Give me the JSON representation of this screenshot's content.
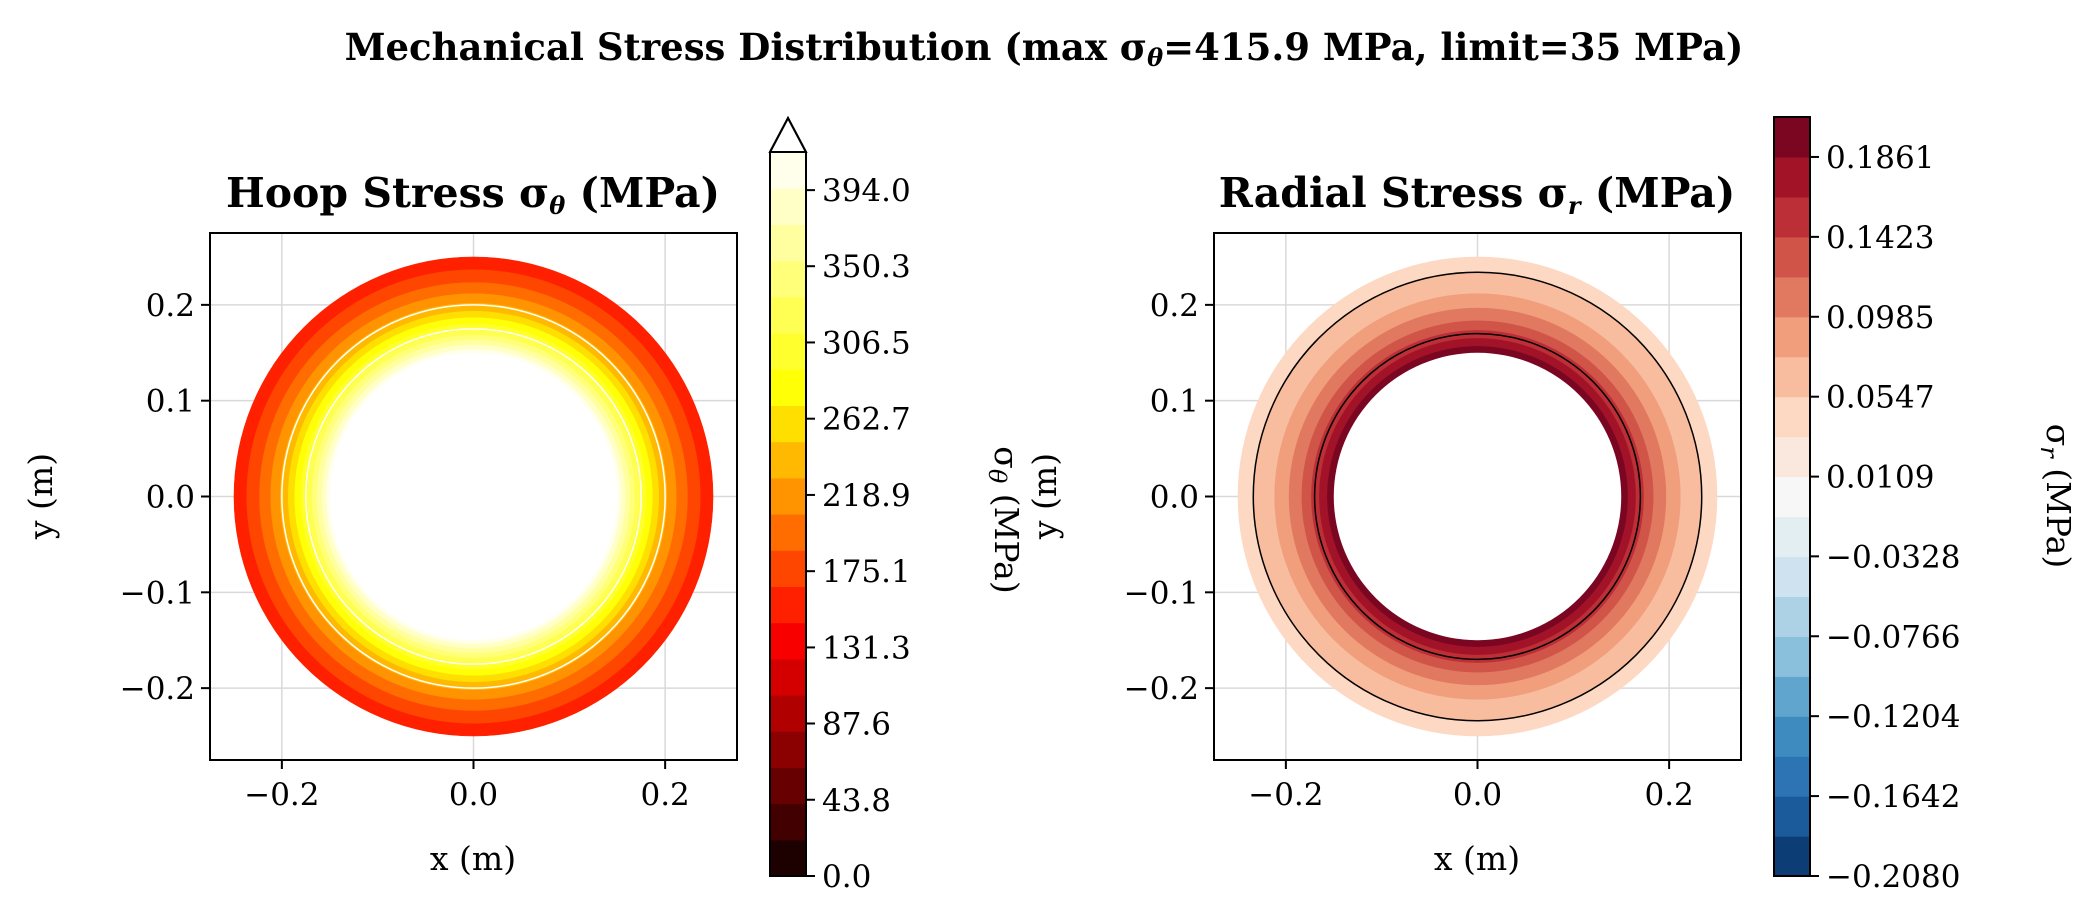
{
  "figure": {
    "suptitle_main": "Mechanical Stress Distribution (max σ",
    "suptitle_sub": "θ",
    "suptitle_rest": "=415.9 MPa, limit=35 MPa)"
  },
  "hoop_panel": {
    "title_main": "Hoop Stress σ",
    "title_sub": "θ",
    "title_rest": " (MPa)",
    "xlabel": "x (m)",
    "ylabel": "y (m)",
    "cbar_label_main": "σ",
    "cbar_label_sub": "θ",
    "cbar_label_rest": " (MPa)"
  },
  "radial_panel": {
    "title_main": "Radial Stress σ",
    "title_sub": "r",
    "title_rest": " (MPa)",
    "xlabel": "x (m)",
    "ylabel": "y (m)",
    "cbar_label_main": "σ",
    "cbar_label_sub": "r",
    "cbar_label_rest": " (MPa)"
  },
  "chart_data": [
    {
      "type": "heatmap",
      "plot_kind": "filled contour on annulus",
      "title": "Hoop Stress σθ (MPa)",
      "xlabel": "x (m)",
      "ylabel": "y (m)",
      "xlim": [
        -0.275,
        0.275
      ],
      "ylim": [
        -0.275,
        0.275
      ],
      "x_ticks": [
        -0.2,
        0.0,
        0.2
      ],
      "y_ticks": [
        -0.2,
        -0.1,
        0.0,
        0.1,
        0.2
      ],
      "x_tick_labels": [
        "−0.2",
        "0.0",
        "0.2"
      ],
      "y_tick_labels": [
        "−0.2",
        "−0.1",
        "0.0",
        "0.1",
        "0.2"
      ],
      "inner_radius": 0.15,
      "outer_radius": 0.25,
      "colormap": "hot",
      "colorbar_min": 0.0,
      "colorbar_max": 415.9,
      "colorbar_extend": "max",
      "colorbar_ticks": [
        0.0,
        43.8,
        87.6,
        131.3,
        175.1,
        218.9,
        262.7,
        306.5,
        350.3,
        394.0
      ],
      "colorbar_tick_labels": [
        "0.0",
        "43.8",
        "87.6",
        "131.3",
        "175.1",
        "218.9",
        "262.7",
        "306.5",
        "350.3",
        "394.0"
      ],
      "levels": 20,
      "field_inner_value": 415.9,
      "field_outer_value": 150,
      "contour_lines_color": "#ffffff",
      "contour_line_radii": [
        0.175,
        0.2
      ],
      "grid": true
    },
    {
      "type": "heatmap",
      "plot_kind": "filled contour on annulus",
      "title": "Radial Stress σr (MPa)",
      "xlabel": "x (m)",
      "ylabel": "y (m)",
      "xlim": [
        -0.275,
        0.275
      ],
      "ylim": [
        -0.275,
        0.275
      ],
      "x_ticks": [
        -0.2,
        0.0,
        0.2
      ],
      "y_ticks": [
        -0.2,
        -0.1,
        0.0,
        0.1,
        0.2
      ],
      "x_tick_labels": [
        "−0.2",
        "0.0",
        "0.2"
      ],
      "y_tick_labels": [
        "−0.2",
        "−0.1",
        "0.0",
        "0.1",
        "0.2"
      ],
      "inner_radius": 0.15,
      "outer_radius": 0.25,
      "colormap": "RdBu_r",
      "colorbar_min": -0.208,
      "colorbar_max": 0.208,
      "colorbar_ticks": [
        -0.208,
        -0.1642,
        -0.1204,
        -0.0766,
        -0.0328,
        0.0109,
        0.0547,
        0.0985,
        0.1423,
        0.1861
      ],
      "colorbar_tick_labels": [
        "−0.2080",
        "−0.1642",
        "−0.1204",
        "−0.0766",
        "−0.0328",
        "0.0109",
        "0.0547",
        "0.0985",
        "0.1423",
        "0.1861"
      ],
      "levels": 19,
      "field_inner_value": 0.208,
      "field_outer_value": 0.04,
      "contour_lines_color": "#000000",
      "contour_line_radii": [
        0.17,
        0.234
      ],
      "grid": true
    }
  ],
  "colors": {
    "hot_stops": [
      "#0b0000",
      "#ff0000",
      "#ffff00",
      "#ffffff"
    ],
    "rdbu_stops": [
      "#053061",
      "#2166ac",
      "#4393c3",
      "#92c5de",
      "#d1e5f0",
      "#f7f7f7",
      "#fddbc7",
      "#f4a582",
      "#d6604d",
      "#b2182b",
      "#67001f"
    ]
  }
}
